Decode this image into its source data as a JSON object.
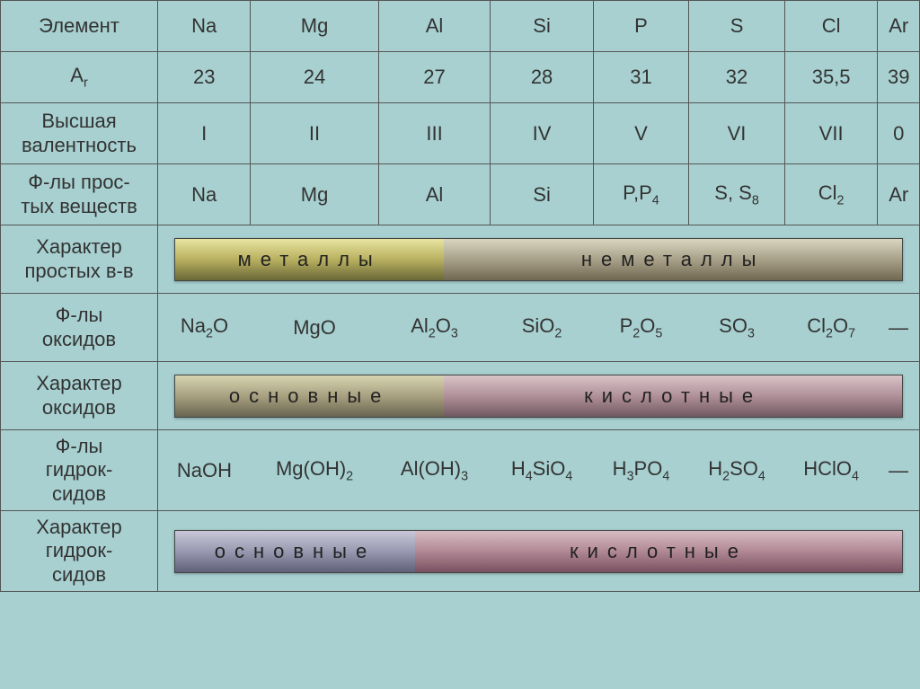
{
  "headers": {
    "element": "Элемент",
    "ar": "Aᵣ",
    "valency": "Высшая валентность",
    "simple_formulas": "Ф-лы прос-\nтых веществ",
    "simple_character": "Характер простых в-в",
    "oxide_formulas": "Ф-лы\nоксидов",
    "oxide_character": "Характер оксидов",
    "hydroxide_formulas": "Ф-лы\nгидрок-\nсидов",
    "hydroxide_character": "Характер гидрок-\nсидов"
  },
  "columns": {
    "label_width": 175,
    "data_widths": [
      106,
      106,
      106,
      106,
      106,
      106,
      106,
      106
    ]
  },
  "elements": [
    "Na",
    "Mg",
    "Al",
    "Si",
    "P",
    "S",
    "Cl",
    "Ar"
  ],
  "ar": [
    "23",
    "24",
    "27",
    "28",
    "31",
    "32",
    "35,5",
    "39"
  ],
  "valency": [
    "I",
    "II",
    "III",
    "IV",
    "V",
    "VI",
    "VII",
    "0"
  ],
  "simple_formulas": [
    "Na",
    "Mg",
    "Al",
    "Si",
    "P,P₄",
    "S, S₈",
    "Cl₂",
    "Ar"
  ],
  "bar1": {
    "left": "металлы",
    "right": "неметаллы",
    "left_color_top": "#e8e4a0",
    "left_color_bot": "#6a6838",
    "right_color_top": "#d8d6c0",
    "right_color_bot": "#706850",
    "split_pct": 37
  },
  "oxides": [
    "Na₂O",
    "MgO",
    "Al₂O₃",
    "SiO₂",
    "P₂O₅",
    "SO₃",
    "Cl₂O₇",
    "—"
  ],
  "bar2": {
    "left": "основные",
    "right": "кислотные",
    "left_color_top": "#d6d4b0",
    "left_color_bot": "#686450",
    "right_color_top": "#d8c4c8",
    "right_color_bot": "#705860",
    "split_pct": 37
  },
  "hydroxides": [
    "NaOH",
    "Mg(OH)₂",
    "Al(OH)₃",
    "H₄SiO₄",
    "H₃PO₄",
    "H₂SO₄",
    "HClO₄",
    "—"
  ],
  "bar3": {
    "left": "основные",
    "right": "кислотные",
    "left_color_top": "#c8c8d8",
    "left_color_bot": "#606078",
    "right_color_top": "#d8bcc4",
    "right_color_bot": "#785060",
    "split_pct": 33
  },
  "colors": {
    "background": "#a8d0d0",
    "border": "#555555",
    "text": "#333333"
  },
  "fontsize": {
    "label": 21,
    "cell": 22,
    "bar": 22
  }
}
